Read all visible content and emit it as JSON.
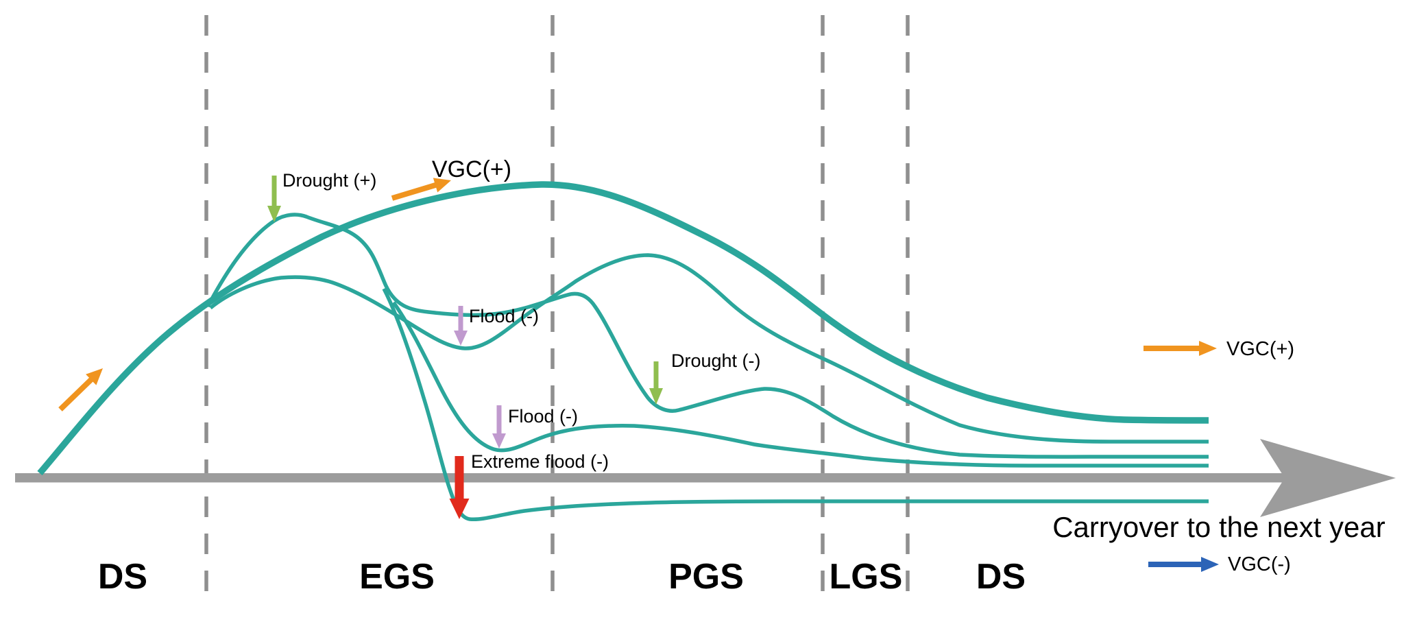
{
  "figure": {
    "background": "#ffffff",
    "colors": {
      "curve_teal": "#2BA69B",
      "axis_gray": "#9C9C9C",
      "dash_gray": "#8F8F8F",
      "arrow_orange": "#F0941F",
      "arrow_green": "#8FBE4F",
      "arrow_purple": "#C09ACE",
      "arrow_red": "#E12A1C",
      "arrow_blue": "#2C64B7",
      "text_black": "#000000"
    },
    "seasons": [
      {
        "label": "DS"
      },
      {
        "label": "EGS"
      },
      {
        "label": "PGS"
      },
      {
        "label": "LGS"
      },
      {
        "label": "DS"
      }
    ],
    "annotations": {
      "vgc_plus_top": "VGC(+)",
      "drought_plus": "Drought (+)",
      "flood_1": "Flood (-)",
      "flood_2": "Flood (-)",
      "extreme_flood": "Extreme flood (-)",
      "drought_minus": "Drought (-)"
    },
    "axis": {
      "carryover_label": "Carryover to the next year"
    },
    "legend": {
      "vgc_plus": "VGC(+)",
      "vgc_minus": "VGC(-)"
    }
  }
}
